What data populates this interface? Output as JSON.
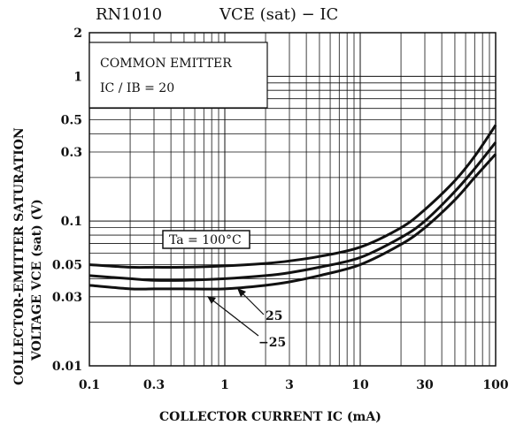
{
  "chart_data": {
    "type": "line",
    "title": "RN1010",
    "subtitle": "VCE (sat) − IC",
    "xlabel": "COLLECTOR CURRENT IC (mA)",
    "ylabel_line1": "COLLECTOR-EMITTER SATURATION",
    "ylabel_line2": "VOLTAGE VCE (sat) (V)",
    "x_scale": "log",
    "y_scale": "log",
    "xlim": [
      0.1,
      100
    ],
    "ylim": [
      0.01,
      2
    ],
    "x_ticks": [
      "0.1",
      "0.3",
      "1",
      "3",
      "10",
      "30",
      "100"
    ],
    "y_ticks": [
      "2",
      "1",
      "0.5",
      "0.3",
      "0.1",
      "0.05",
      "0.03",
      "0.01"
    ],
    "grid": true,
    "annotations": {
      "box_line1": "COMMON EMITTER",
      "box_line2": "IC / IB = 20",
      "ta_label": "Ta = 100°C",
      "label_25": "25",
      "label_m25": "−25"
    },
    "series": [
      {
        "name": "Ta = 100°C",
        "x": [
          0.1,
          0.2,
          0.3,
          0.5,
          1,
          2,
          3,
          5,
          10,
          20,
          30,
          50,
          70,
          100
        ],
        "y": [
          0.05,
          0.048,
          0.048,
          0.048,
          0.049,
          0.051,
          0.053,
          0.057,
          0.066,
          0.09,
          0.12,
          0.19,
          0.28,
          0.46
        ]
      },
      {
        "name": "25",
        "x": [
          0.1,
          0.2,
          0.3,
          0.5,
          1,
          2,
          3,
          5,
          10,
          20,
          30,
          50,
          70,
          100
        ],
        "y": [
          0.042,
          0.04,
          0.039,
          0.039,
          0.04,
          0.042,
          0.044,
          0.048,
          0.056,
          0.077,
          0.1,
          0.16,
          0.23,
          0.35
        ]
      },
      {
        "name": "−25",
        "x": [
          0.1,
          0.2,
          0.3,
          0.5,
          1,
          2,
          3,
          5,
          10,
          20,
          30,
          50,
          70,
          100
        ],
        "y": [
          0.036,
          0.034,
          0.034,
          0.034,
          0.034,
          0.036,
          0.038,
          0.042,
          0.05,
          0.069,
          0.09,
          0.14,
          0.2,
          0.29
        ]
      }
    ]
  }
}
